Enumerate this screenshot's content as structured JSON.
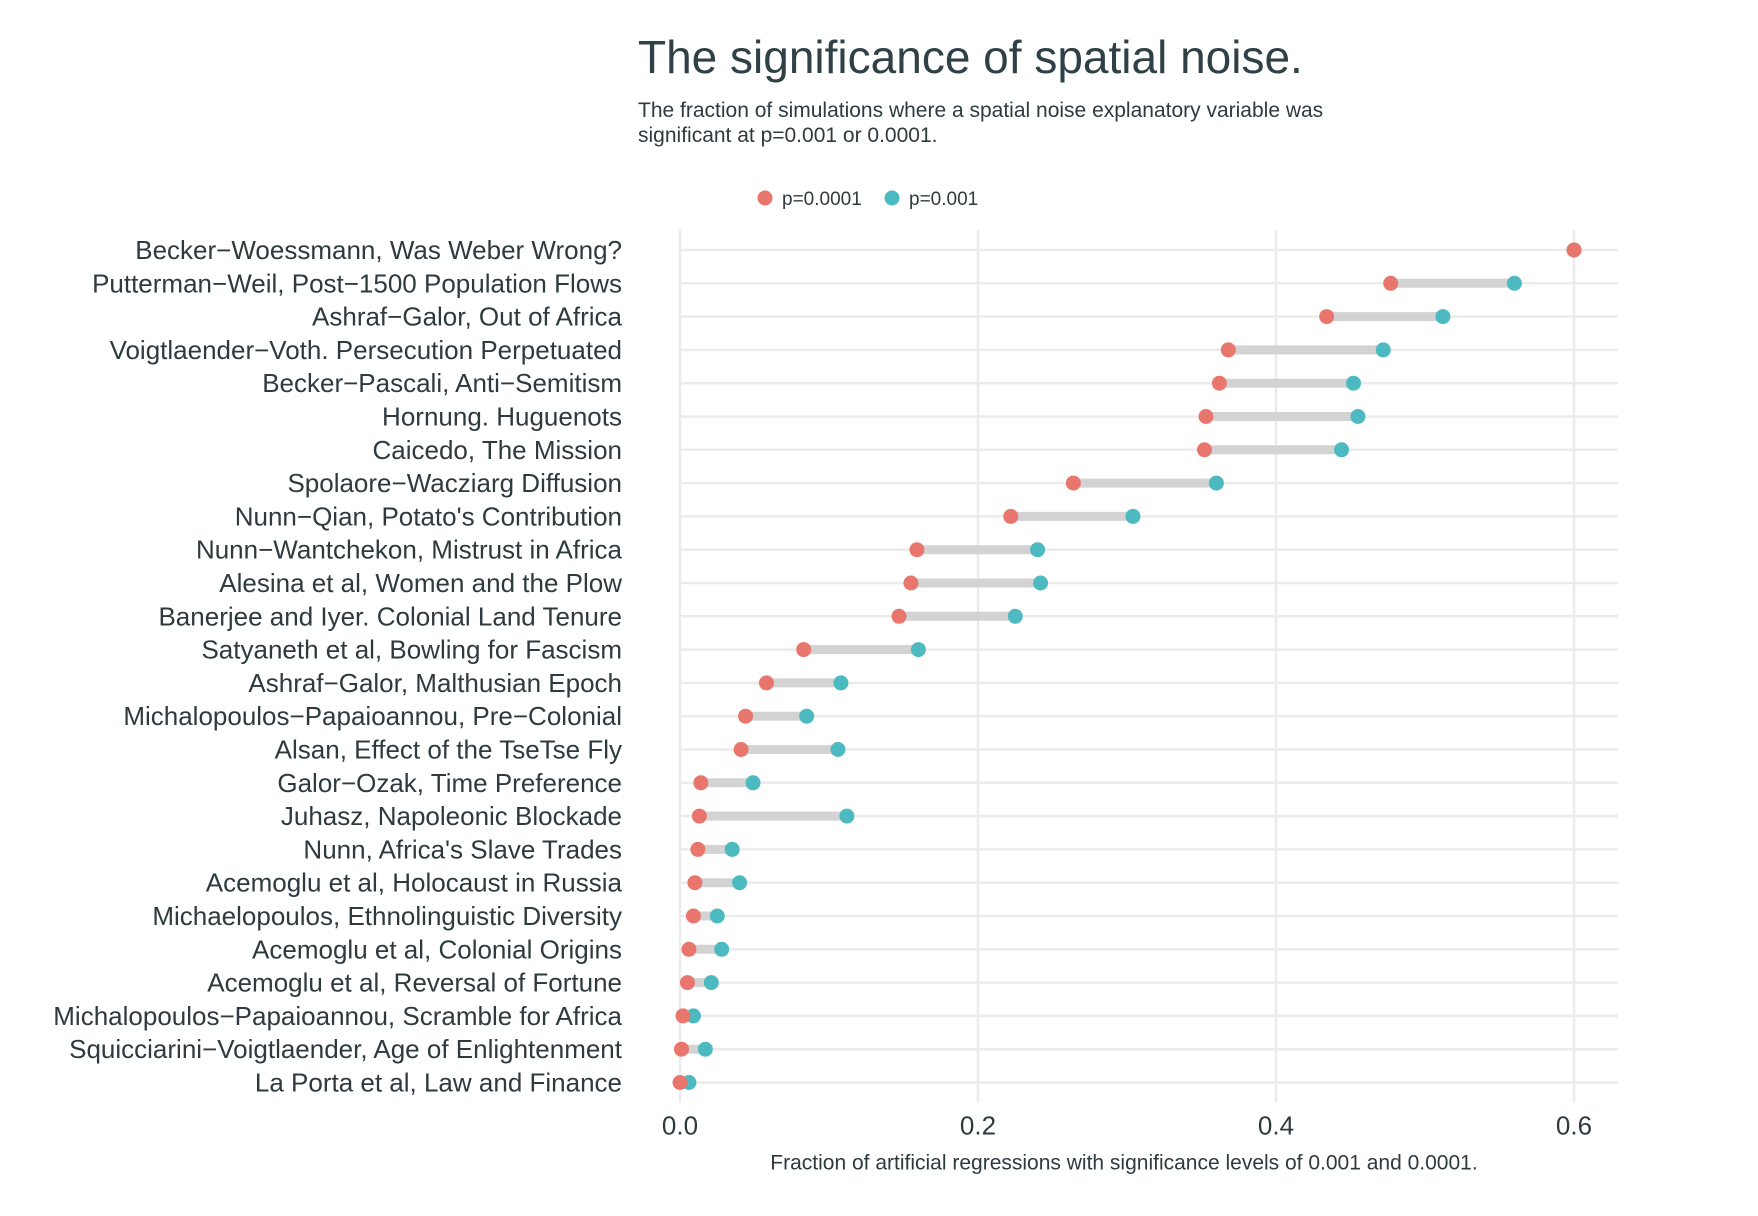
{
  "chart_data": {
    "type": "dumbbell",
    "title": "The significance of spatial noise.",
    "subtitle": "The fraction of simulations where a spatial noise explanatory variable was significant at p=0.001 or 0.0001.",
    "xlabel": "Fraction of artificial regressions with significance levels of 0.001 and 0.0001.",
    "ylabel": "",
    "xlim": [
      -0.03,
      0.63
    ],
    "x_ticks": [
      0.0,
      0.2,
      0.4,
      0.6
    ],
    "x_tick_labels": [
      "0.0",
      "0.2",
      "0.4",
      "0.6"
    ],
    "grid": true,
    "legend_position": "top",
    "series": [
      {
        "name": "p=0.0001",
        "color": "#E8766D"
      },
      {
        "name": "p=0.001",
        "color": "#4DB9C0"
      }
    ],
    "connector_color": "#d3d3d3",
    "categories": [
      "Becker−Woessmann, Was Weber Wrong?",
      "Putterman−Weil, Post−1500 Population Flows",
      "Ashraf−Galor, Out of Africa",
      "Voigtlaender−Voth. Persecution Perpetuated",
      "Becker−Pascali, Anti−Semitism",
      "Hornung. Huguenots",
      "Caicedo, The Mission",
      "Spolaore−Wacziarg Diffusion",
      "Nunn−Qian, Potato's Contribution",
      "Nunn−Wantchekon, Mistrust in Africa",
      "Alesina et al, Women and the Plow",
      "Banerjee and Iyer. Colonial Land Tenure",
      "Satyaneth et al, Bowling for Fascism",
      "Ashraf−Galor, Malthusian Epoch",
      "Michalopoulos−Papaioannou, Pre−Colonial",
      "Alsan, Effect of the TseTse Fly",
      "Galor−Ozak, Time Preference",
      "Juhasz, Napoleonic Blockade",
      "Nunn, Africa's Slave Trades",
      "Acemoglu et al, Holocaust in Russia",
      "Michaelopoulos, Ethnolinguistic Diversity",
      "Acemoglu et al, Colonial Origins",
      "Acemoglu et al, Reversal of Fortune",
      "Michalopoulos−Papaioannou, Scramble for Africa",
      "Squicciarini−Voigtlaender, Age of Enlightenment",
      "La Porta et al, Law and Finance"
    ],
    "values_p0001": [
      0.6,
      0.477,
      0.434,
      0.368,
      0.362,
      0.353,
      0.352,
      0.264,
      0.222,
      0.159,
      0.155,
      0.147,
      0.083,
      0.058,
      0.044,
      0.041,
      0.014,
      0.013,
      0.012,
      0.01,
      0.009,
      0.006,
      0.005,
      0.002,
      0.001,
      0.0
    ],
    "values_p001": [
      0.6,
      0.56,
      0.512,
      0.472,
      0.452,
      0.455,
      0.444,
      0.36,
      0.304,
      0.24,
      0.242,
      0.225,
      0.16,
      0.108,
      0.085,
      0.106,
      0.049,
      0.112,
      0.035,
      0.04,
      0.025,
      0.028,
      0.021,
      0.009,
      0.017,
      0.006
    ]
  }
}
